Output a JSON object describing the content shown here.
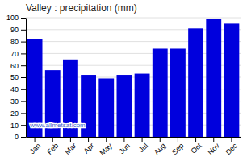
{
  "chart_data": {
    "type": "bar",
    "title": "Valley : precipitation (mm)",
    "categories": [
      "Jan",
      "Feb",
      "Mar",
      "Apr",
      "May",
      "Jun",
      "Jul",
      "Aug",
      "Sep",
      "Oct",
      "Nov",
      "Dec"
    ],
    "values": [
      82,
      56,
      65,
      52,
      49,
      52,
      53,
      74,
      74,
      91,
      99,
      95
    ],
    "color": "#0000DD",
    "ylim": [
      0,
      100
    ],
    "yticks": [
      0,
      10,
      20,
      30,
      40,
      50,
      60,
      70,
      80,
      90,
      100
    ],
    "grid": true,
    "annotations": [
      "www.allmetsat.com"
    ]
  }
}
